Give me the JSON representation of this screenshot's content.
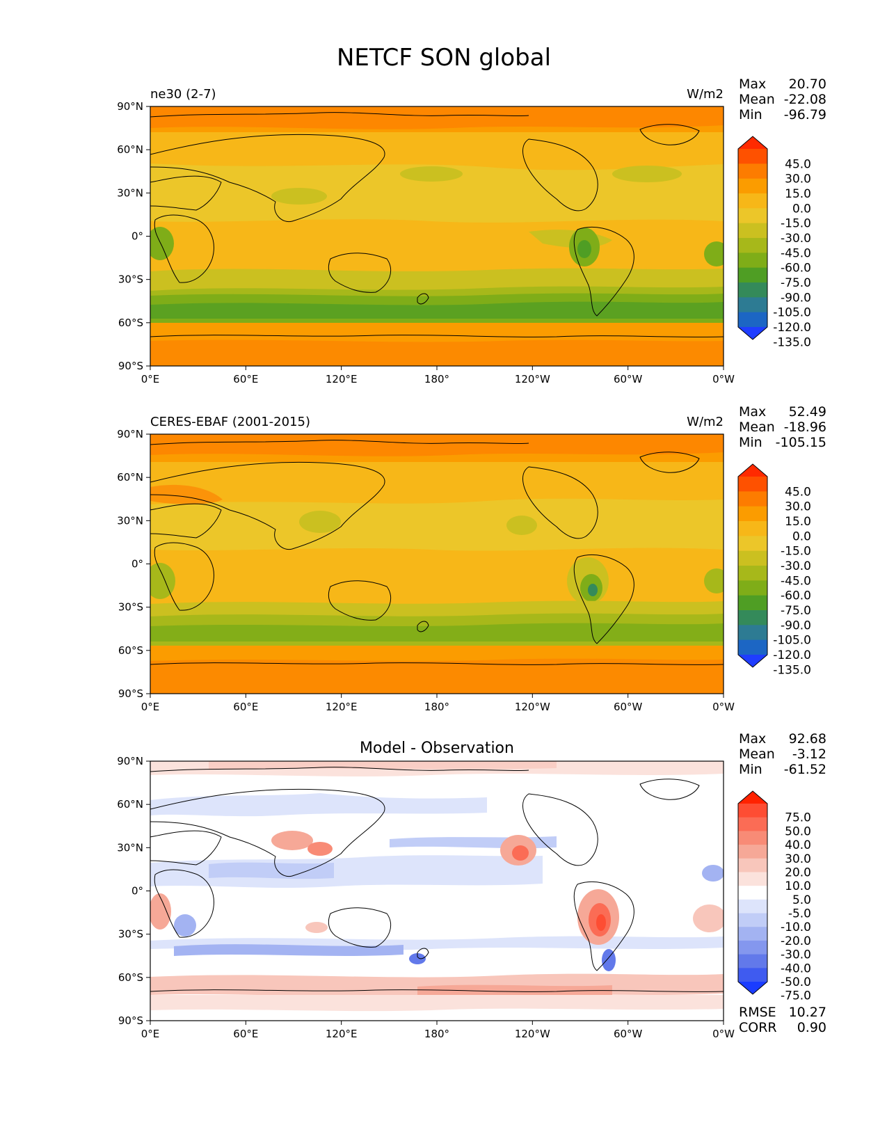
{
  "figure": {
    "title": "NETCF SON global"
  },
  "x_ticks": [
    "0°E",
    "60°E",
    "120°E",
    "180°",
    "120°W",
    "60°W",
    "0°W"
  ],
  "y_ticks": [
    "90°N",
    "60°N",
    "30°N",
    "0°",
    "30°S",
    "60°S",
    "90°S"
  ],
  "stat_labels": {
    "max": "Max",
    "mean": "Mean",
    "min": "Min",
    "rmse": "RMSE",
    "corr": "CORR"
  },
  "panels": [
    {
      "left_title": "ne30 (2-7)",
      "center_title": "",
      "units": "W/m2",
      "stats": {
        "max": "20.70",
        "mean": "-22.08",
        "min": "-96.79"
      },
      "levels": [
        "45.0",
        "30.0",
        "15.0",
        "0.0",
        "-15.0",
        "-30.0",
        "-45.0",
        "-60.0",
        "-75.0",
        "-90.0",
        "-105.0",
        "-120.0",
        "-135.0"
      ],
      "colors": [
        "#ff2a00",
        "#fe5100",
        "#fd7c00",
        "#fb9c00",
        "#f7b718",
        "#ecc629",
        "#cbc020",
        "#a7b81a",
        "#7fad18",
        "#4f9e24",
        "#348a5a",
        "#2d7b93",
        "#1c66c4",
        "#1f3dff"
      ]
    },
    {
      "left_title": "CERES-EBAF (2001-2015)",
      "center_title": "",
      "units": "W/m2",
      "stats": {
        "max": "52.49",
        "mean": "-18.96",
        "min": "-105.15"
      },
      "levels": [
        "45.0",
        "30.0",
        "15.0",
        "0.0",
        "-15.0",
        "-30.0",
        "-45.0",
        "-60.0",
        "-75.0",
        "-90.0",
        "-105.0",
        "-120.0",
        "-135.0"
      ],
      "colors": [
        "#ff2a00",
        "#fe5100",
        "#fd7c00",
        "#fb9c00",
        "#f7b718",
        "#ecc629",
        "#cbc020",
        "#a7b81a",
        "#7fad18",
        "#4f9e24",
        "#348a5a",
        "#2d7b93",
        "#1c66c4",
        "#1f3dff"
      ]
    },
    {
      "left_title": "",
      "center_title": "Model - Observation",
      "units": "",
      "stats": {
        "max": "92.68",
        "mean": "-3.12",
        "min": "-61.52",
        "rmse": "10.27",
        "corr": "0.90"
      },
      "levels": [
        "75.0",
        "50.0",
        "40.0",
        "30.0",
        "20.0",
        "10.0",
        "5.0",
        "-5.0",
        "-10.0",
        "-20.0",
        "-30.0",
        "-40.0",
        "-50.0",
        "-75.0"
      ],
      "colors": [
        "#ff2200",
        "#fe4d33",
        "#fb6c55",
        "#f88b76",
        "#f6a897",
        "#f8c6bb",
        "#fbe2dc",
        "#ffffff",
        "#dde4fb",
        "#c1cdf7",
        "#a3b3f2",
        "#8497ee",
        "#6279ea",
        "#3f5bf0",
        "#1a3cff"
      ]
    }
  ]
}
